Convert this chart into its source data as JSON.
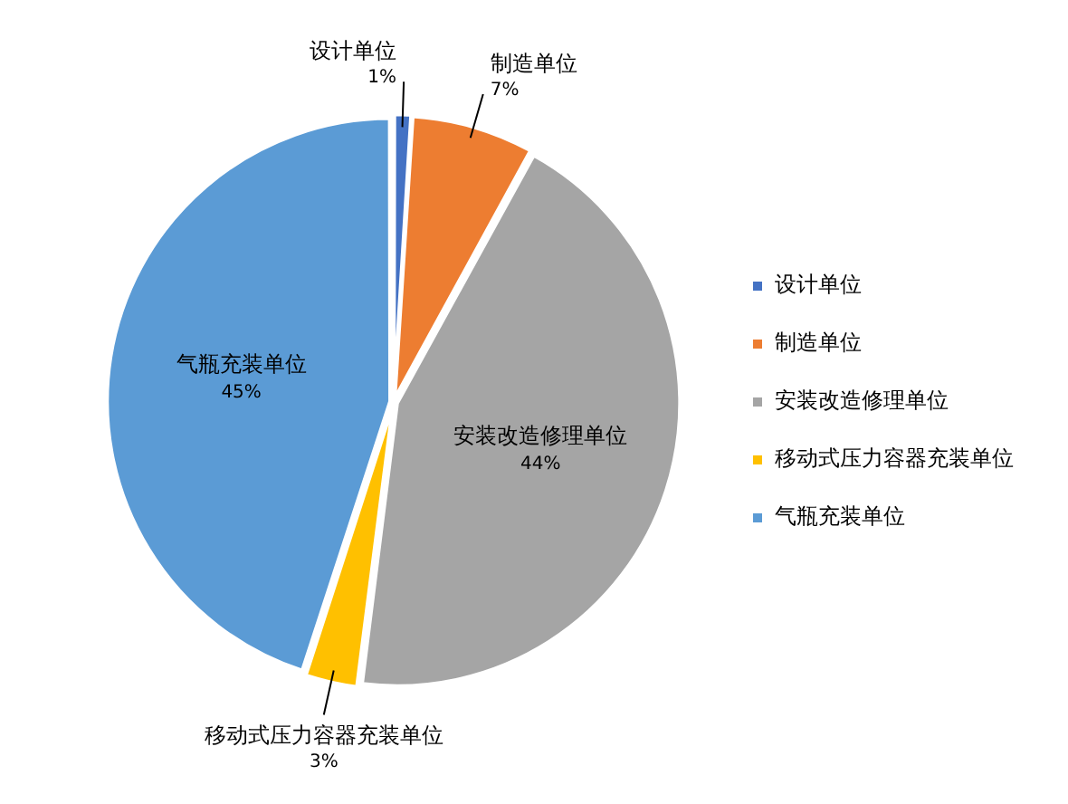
{
  "chart_data": {
    "type": "pie",
    "categories": [
      "设计单位",
      "制造单位",
      "安装改造修理单位",
      "移动式压力容器充装单位",
      "气瓶充装单位"
    ],
    "values": [
      1,
      7,
      44,
      3,
      45
    ],
    "value_labels": [
      "1%",
      "7%",
      "44%",
      "3%",
      "45%"
    ],
    "colors": [
      "#4472c4",
      "#ed7d31",
      "#a5a5a5",
      "#ffc000",
      "#5b9bd5"
    ],
    "legend": "right"
  }
}
